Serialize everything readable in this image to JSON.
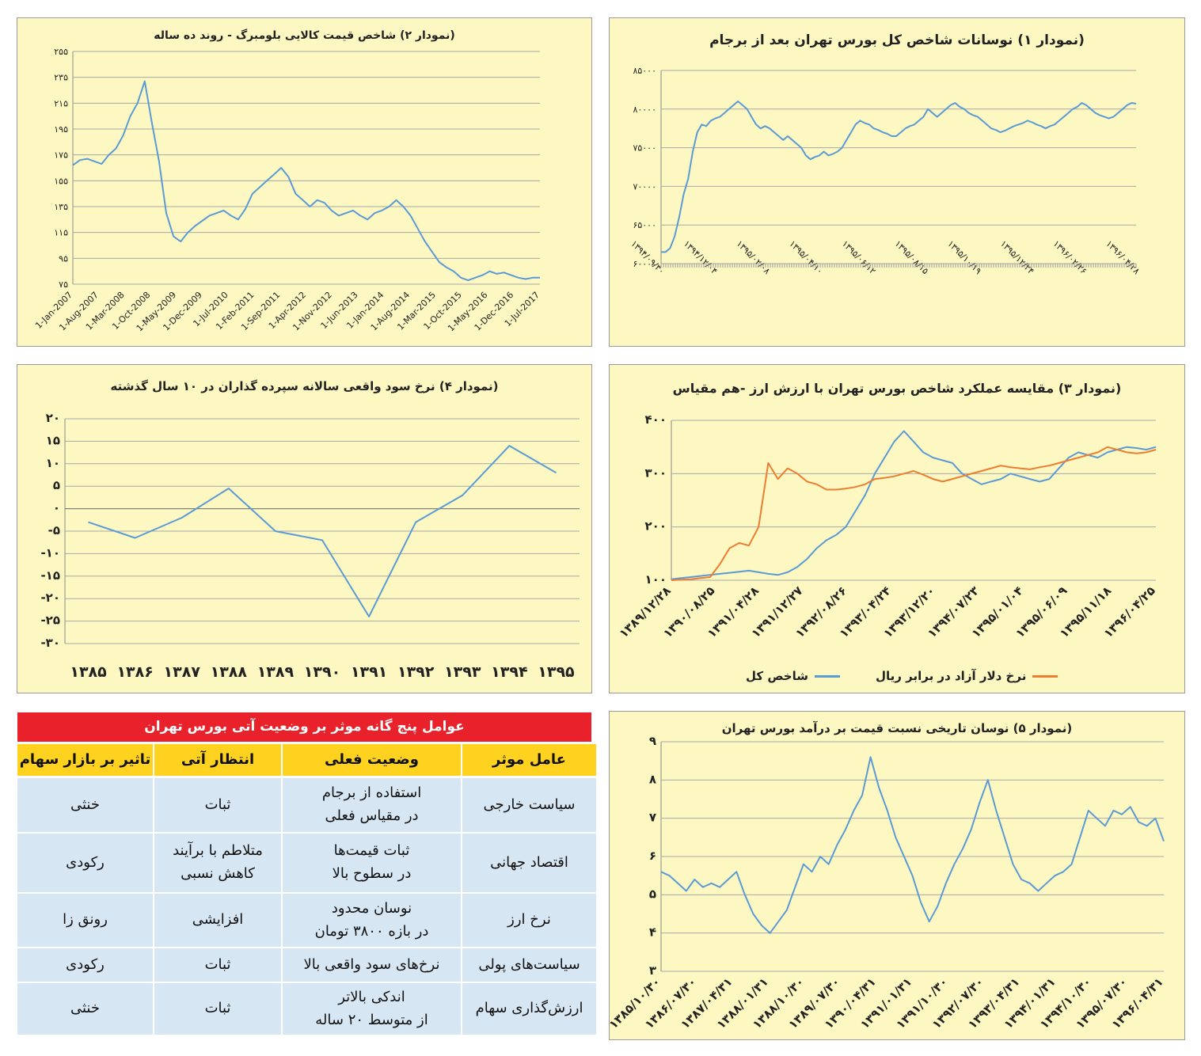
{
  "colors": {
    "panel_bg": "#fdf7c2",
    "line_blue": "#5b9bd5",
    "line_orange": "#ed7d31",
    "table_header": "#e8212b",
    "table_col_header": "#ffd21f",
    "table_cell": "#d6e6f3"
  },
  "chart_data": [
    {
      "id": "chart1",
      "type": "line",
      "title": "(نمودار ۱) نوسانات شاخص کل بورس تهران بعد از برجام",
      "ylim": [
        60000,
        85000
      ],
      "yticks": [
        "۸۵۰۰۰",
        "۸۰۰۰۰",
        "۷۵۰۰۰",
        "۷۰۰۰۰",
        "۶۵۰۰۰",
        "۶۰۰۰۰"
      ],
      "ytick_values": [
        85000,
        80000,
        75000,
        70000,
        65000,
        60000
      ],
      "xticks": [
        "۱۳۹۴/۰۹/۳۰",
        "۱۳۹۴/۱۲/۰۴",
        "۱۳۹۵/۰۲/۰۸",
        "۱۳۹۵/۰۴/۱۰",
        "۱۳۹۵/۰۶/۱۲",
        "۱۳۹۵/۰۸/۱۵",
        "۱۳۹۵/۱۰/۱۹",
        "۱۳۹۵/۱۲/۲۴",
        "۱۳۹۶/۰۲/۲۶",
        "۱۳۹۶/۰۴/۲۸"
      ],
      "series": [
        {
          "values": [
            61500,
            61500,
            62000,
            63500,
            66000,
            69000,
            71000,
            74500,
            77000,
            78000,
            77800,
            78500,
            78800,
            79000,
            79500,
            80000,
            80500,
            81000,
            80500,
            80000,
            79000,
            78000,
            77500,
            77800,
            77500,
            77000,
            76500,
            76000,
            76500,
            76000,
            75500,
            75000,
            74000,
            73500,
            73800,
            74000,
            74500,
            74000,
            74200,
            74500,
            75000,
            76000,
            77000,
            78000,
            78500,
            78200,
            78000,
            77500,
            77300,
            77000,
            76800,
            76500,
            76500,
            77000,
            77500,
            77800,
            78000,
            78500,
            79000,
            80000,
            79500,
            79000,
            79500,
            80000,
            80500,
            80800,
            80300,
            80000,
            79500,
            79200,
            79000,
            78500,
            78000,
            77500,
            77300,
            77000,
            77200,
            77500,
            77800,
            78000,
            78200,
            78500,
            78300,
            78000,
            77800,
            77500,
            77800,
            78000,
            78500,
            79000,
            79500,
            80000,
            80300,
            80800,
            80500,
            80000,
            79500,
            79200,
            79000,
            78800,
            79000,
            79500,
            80000,
            80500,
            80800,
            80700
          ]
        }
      ]
    },
    {
      "id": "chart2",
      "type": "line",
      "title": "(نمودار ۲) شاخص قیمت کالایی بلومبرگ - روند ده ساله",
      "ylim": [
        75,
        255
      ],
      "yticks": [
        "۲۵۵",
        "۲۳۵",
        "۲۱۵",
        "۱۹۵",
        "۱۷۵",
        "۱۵۵",
        "۱۳۵",
        "۱۱۵",
        "۹۵",
        "۷۵"
      ],
      "ytick_values": [
        255,
        235,
        215,
        195,
        175,
        155,
        135,
        115,
        95,
        75
      ],
      "xticks": [
        "1-Jan-2007",
        "1-Aug-2007",
        "1-Mar-2008",
        "1-Oct-2008",
        "1-May-2009",
        "1-Dec-2009",
        "1-Jul-2010",
        "1-Feb-2011",
        "1-Sep-2011",
        "1-Apr-2012",
        "1-Nov-2012",
        "1-Jun-2013",
        "1-Jan-2014",
        "1-Aug-2014",
        "1-Mar-2015",
        "1-Oct-2015",
        "1-May-2016",
        "1-Dec-2016",
        "1-Jul-2017"
      ],
      "series": [
        {
          "values": [
            167,
            171,
            172,
            170,
            168,
            175,
            180,
            190,
            205,
            215,
            232,
            200,
            170,
            130,
            112,
            108,
            115,
            120,
            124,
            128,
            130,
            132,
            128,
            125,
            133,
            145,
            150,
            155,
            160,
            165,
            158,
            145,
            140,
            135,
            140,
            138,
            132,
            128,
            130,
            132,
            128,
            125,
            130,
            132,
            135,
            140,
            135,
            128,
            118,
            108,
            100,
            92,
            88,
            85,
            80,
            78,
            80,
            82,
            85,
            83,
            84,
            82,
            80,
            79,
            80,
            80
          ]
        }
      ]
    },
    {
      "id": "chart3",
      "type": "line",
      "title": "(نمودار ۳) مقایسه عملکرد شاخص بورس تهران با ارزش ارز -هم مقیاس",
      "ylim": [
        100,
        400
      ],
      "yticks": [
        "۴۰۰",
        "۳۰۰",
        "۲۰۰",
        "۱۰۰"
      ],
      "ytick_values": [
        400,
        300,
        200,
        100
      ],
      "xticks": [
        "۱۳۸۹/۱۲/۲۸",
        "۱۳۹۰/۰۸/۲۵",
        "۱۳۹۱/۰۴/۲۸",
        "۱۳۹۱/۱۲/۲۷",
        "۱۳۹۲/۰۸/۲۶",
        "۱۳۹۳/۰۴/۲۴",
        "۱۳۹۳/۱۲/۲۰",
        "۱۳۹۴/۰۷/۲۳",
        "۱۳۹۵/۰۱/۰۴",
        "۱۳۹۵/۰۶/۰۹",
        "۱۳۹۵/۱۱/۱۸",
        "۱۳۹۶/۰۴/۲۵"
      ],
      "series": [
        {
          "name": "شاخص کل",
          "values": [
            102,
            104,
            106,
            108,
            110,
            112,
            114,
            116,
            118,
            115,
            112,
            110,
            115,
            125,
            140,
            160,
            175,
            185,
            200,
            230,
            260,
            300,
            330,
            360,
            380,
            360,
            340,
            330,
            325,
            320,
            300,
            290,
            280,
            285,
            290,
            300,
            295,
            290,
            285,
            290,
            310,
            330,
            340,
            335,
            330,
            340,
            345,
            350,
            348,
            345,
            350
          ]
        },
        {
          "name": "نرخ دلار آزاد در برابر ریال",
          "values": [
            100,
            101,
            102,
            104,
            106,
            130,
            160,
            170,
            165,
            200,
            320,
            290,
            310,
            300,
            285,
            280,
            270,
            270,
            272,
            275,
            280,
            290,
            292,
            295,
            300,
            305,
            298,
            290,
            285,
            290,
            295,
            300,
            305,
            310,
            315,
            312,
            310,
            308,
            312,
            315,
            320,
            325,
            330,
            335,
            340,
            350,
            345,
            340,
            338,
            340,
            345
          ]
        }
      ]
    },
    {
      "id": "chart4",
      "type": "line",
      "title": "(نمودار ۴) نرخ سود واقعی سالانه سپرده گذاران در ۱۰ سال گذشته",
      "ylim": [
        -30,
        20
      ],
      "yticks": [
        "۲۰",
        "۱۵",
        "۱۰",
        "۵",
        "۰",
        "-۵",
        "-۱۰",
        "-۱۵",
        "-۲۰",
        "-۲۵",
        "-۳۰"
      ],
      "ytick_values": [
        20,
        15,
        10,
        5,
        0,
        -5,
        -10,
        -15,
        -20,
        -25,
        -30
      ],
      "categories": [
        "۱۳۸۵",
        "۱۳۸۶",
        "۱۳۸۷",
        "۱۳۸۸",
        "۱۳۸۹",
        "۱۳۹۰",
        "۱۳۹۱",
        "۱۳۹۲",
        "۱۳۹۳",
        "۱۳۹۴",
        "۱۳۹۵"
      ],
      "series": [
        {
          "values": [
            -3,
            -6.5,
            -2,
            4.5,
            -5,
            -7,
            -24,
            -3,
            3,
            14,
            8
          ]
        }
      ]
    },
    {
      "id": "chart5",
      "type": "line",
      "title": "(نمودار ۵) نوسان تاریخی نسبت قیمت بر درآمد بورس تهران",
      "ylim": [
        3,
        9
      ],
      "yticks": [
        "۹",
        "۸",
        "۷",
        "۶",
        "۵",
        "۴",
        "۳"
      ],
      "ytick_values": [
        9,
        8,
        7,
        6,
        5,
        4,
        3
      ],
      "xticks": [
        "۱۳۸۵/۱۰/۳۰",
        "۱۳۸۶/۰۷/۳۰",
        "۱۳۸۷/۰۴/۳۱",
        "۱۳۸۸/۰۱/۳۱",
        "۱۳۸۸/۱۰/۳۰",
        "۱۳۸۹/۰۷/۳۰",
        "۱۳۹۰/۰۴/۳۱",
        "۱۳۹۱/۰۱/۳۱",
        "۱۳۹۱/۱۰/۳۰",
        "۱۳۹۲/۰۷/۳۰",
        "۱۳۹۳/۰۴/۳۱",
        "۱۳۹۴/۰۱/۳۱",
        "۱۳۹۴/۱۰/۳۰",
        "۱۳۹۵/۰۷/۳۰",
        "۱۳۹۶/۰۴/۳۱"
      ],
      "series": [
        {
          "values": [
            5.6,
            5.5,
            5.3,
            5.1,
            5.4,
            5.2,
            5.3,
            5.2,
            5.4,
            5.6,
            5.0,
            4.5,
            4.2,
            4.0,
            4.3,
            4.6,
            5.2,
            5.8,
            5.6,
            6.0,
            5.8,
            6.3,
            6.7,
            7.2,
            7.6,
            8.6,
            7.8,
            7.2,
            6.5,
            6.0,
            5.5,
            4.8,
            4.3,
            4.7,
            5.3,
            5.8,
            6.2,
            6.7,
            7.4,
            8.0,
            7.2,
            6.5,
            5.8,
            5.4,
            5.3,
            5.1,
            5.3,
            5.5,
            5.6,
            5.8,
            6.5,
            7.2,
            7.0,
            6.8,
            7.2,
            7.1,
            7.3,
            6.9,
            6.8,
            7.0,
            6.4
          ]
        }
      ]
    }
  ],
  "legend3": {
    "blue": "شاخص کل",
    "orange": "نرخ دلار آزاد در برابر ریال"
  },
  "table": {
    "title": "عوامل پنج گانه موثر بر وضعیت آتی بورس تهران",
    "headers": [
      "عامل موثر",
      "وضعیت فعلی",
      "انتظار آتی",
      "تاثیر بر بازار سهام"
    ],
    "rows": [
      [
        "سیاست خارجی",
        "استفاده از برجام\nدر مقیاس فعلی",
        "ثبات",
        "خنثی"
      ],
      [
        "اقتصاد جهانی",
        "ثبات قیمت‌ها\nدر سطوح بالا",
        "متلاطم با برآیند\nکاهش نسبی",
        "رکودی"
      ],
      [
        "نرخ ارز",
        "نوسان محدود\nدر بازه ۳۸۰۰ تومان",
        "افزایشی",
        "رونق زا"
      ],
      [
        "سیاست‌های پولی",
        "نرخ‌های سود واقعی بالا",
        "ثبات",
        "رکودی"
      ],
      [
        "ارزش‌گذاری سهام",
        "اندکی بالاتر\nاز متوسط ۲۰ ساله",
        "ثبات",
        "خنثی"
      ]
    ]
  }
}
